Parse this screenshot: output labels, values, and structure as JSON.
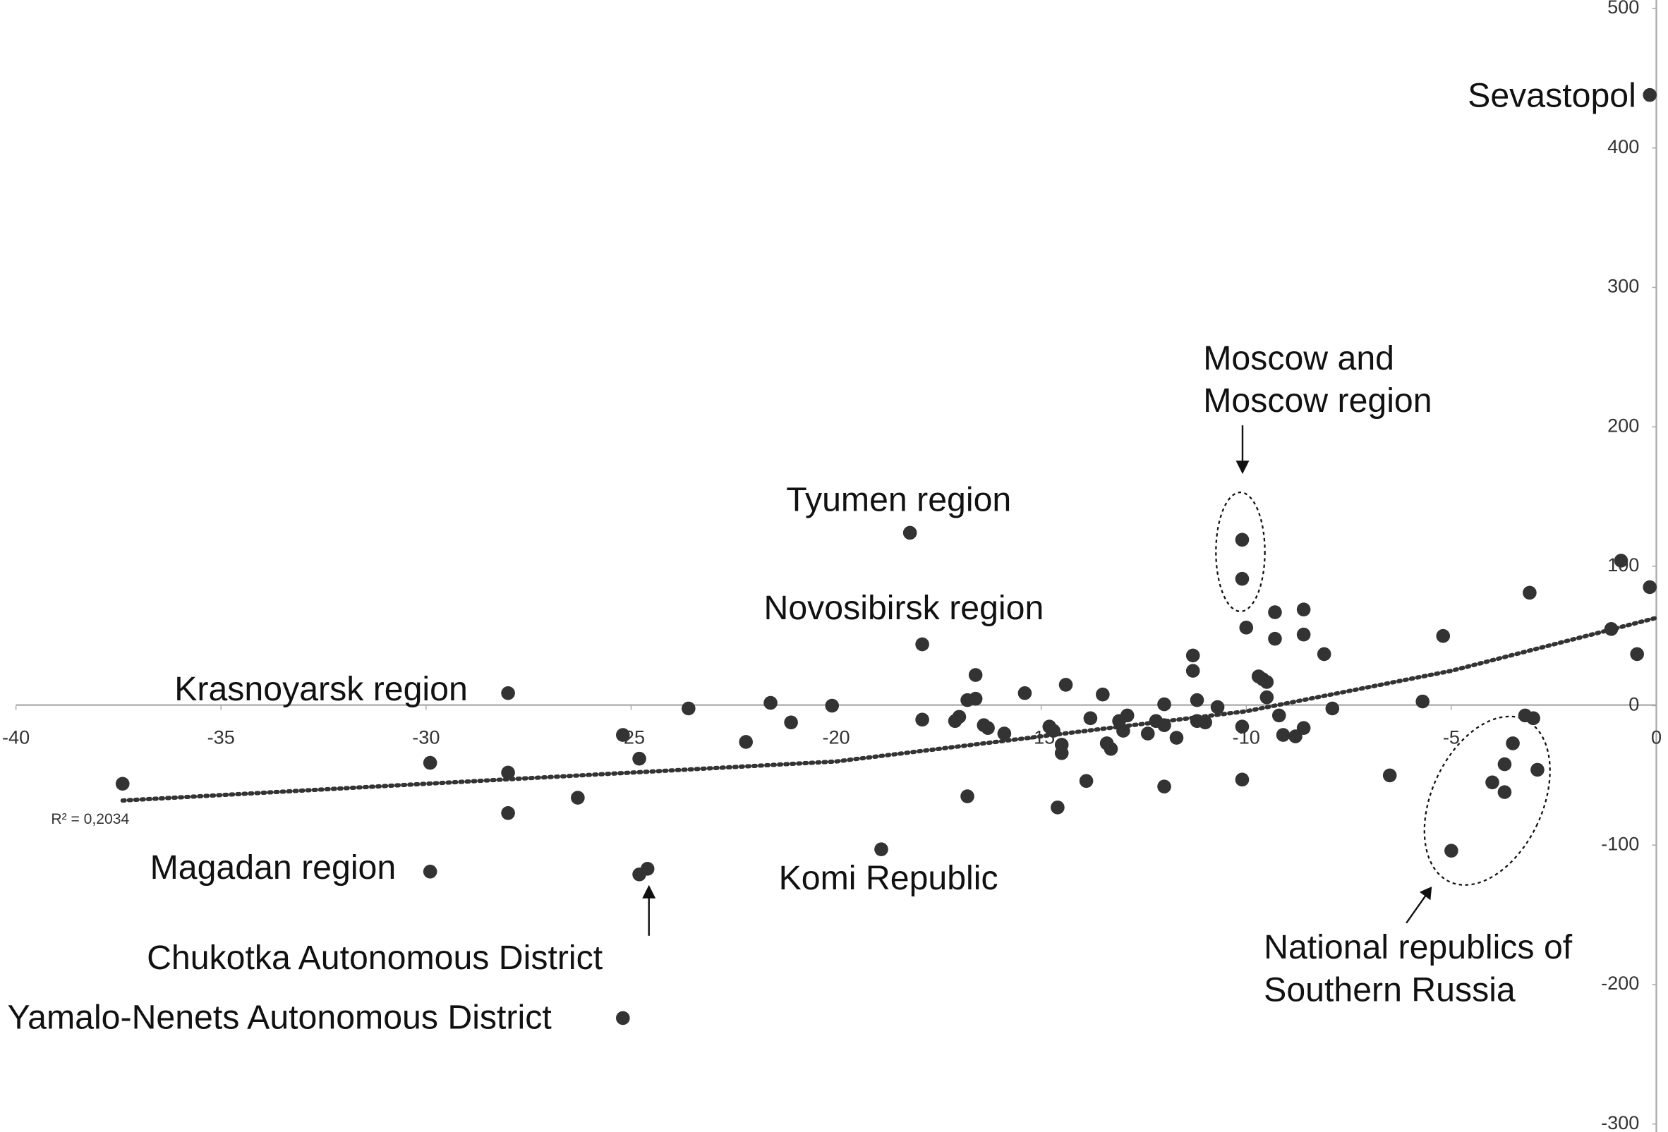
{
  "chart_data": {
    "type": "scatter",
    "x": [
      -0.16,
      -0.86,
      -0.16,
      -1.1,
      -0.47,
      -3.09,
      -3.2,
      -3.0,
      -3.5,
      -3.7,
      -2.9,
      -4.0,
      -3.7,
      -5.0,
      -5.2,
      -5.7,
      -6.5,
      -7.9,
      -8.1,
      -8.6,
      -8.6,
      -8.6,
      -8.8,
      -9.1,
      -9.2,
      -9.3,
      -9.3,
      -9.5,
      -9.5,
      -9.6,
      -9.7,
      -10.0,
      -10.1,
      -10.1,
      -10.1,
      -10.1,
      -10.7,
      -11.0,
      -11.2,
      -11.2,
      -11.3,
      -11.3,
      -11.7,
      -12.0,
      -12.0,
      -12.0,
      -12.2,
      -12.4,
      -12.9,
      -13.0,
      -13.1,
      -13.3,
      -13.4,
      -13.5,
      -13.8,
      -13.9,
      -14.4,
      -14.5,
      -14.5,
      -14.6,
      -14.7,
      -14.8,
      -15.4,
      -15.9,
      -16.3,
      -16.4,
      -16.6,
      -16.6,
      -16.8,
      -17.0,
      -17.1,
      -16.8,
      -17.9,
      -17.9,
      -18.2,
      -18.9,
      -20.1,
      -21.1,
      -21.6,
      -22.2,
      -23.6,
      -24.6,
      -24.8,
      -24.8,
      -25.2,
      -25.2,
      -26.3,
      -28.0,
      -28.0,
      -28.0,
      -29.9,
      -29.9,
      -37.4
    ],
    "y": [
      438,
      104,
      85,
      55,
      37,
      81,
      -7,
      -9,
      -27,
      -42,
      -46,
      -55,
      -62,
      -104,
      50,
      3,
      -50,
      -2,
      37,
      69,
      51,
      -16,
      -22,
      -21,
      -7,
      67,
      48,
      6,
      17,
      19,
      21,
      56,
      119,
      91,
      -15,
      -53,
      -1,
      -12,
      -11,
      4,
      36,
      25,
      -23,
      1,
      -14,
      -58,
      -11,
      -20,
      -7,
      -18,
      -11,
      -31,
      -27,
      8,
      -9,
      -54,
      15,
      -28,
      -34,
      -73,
      -18,
      -15,
      9,
      -20,
      -16,
      -14,
      5,
      22,
      4,
      -8,
      -11,
      -65,
      44,
      -10,
      124,
      -103,
      0,
      -12,
      2,
      -26,
      -2,
      -117,
      -121,
      -38,
      -21,
      -224,
      -66,
      -48,
      -77,
      9,
      -41,
      -119,
      -56
    ],
    "color": "#333333",
    "xlim": [
      -40,
      0
    ],
    "ylim": [
      -300,
      500
    ],
    "xticks": [
      -40,
      -35,
      -30,
      -25,
      -20,
      -15,
      -10,
      -5,
      0
    ],
    "yticks": [
      -300,
      -200,
      -100,
      0,
      100,
      200,
      300,
      400,
      500
    ],
    "trendline": {
      "x": [
        -37.4,
        -30,
        -20,
        -10,
        -5,
        0
      ],
      "y": [
        -68,
        -56,
        -40,
        -4,
        25,
        63
      ],
      "label": "R² = 0,2034"
    },
    "annotations": [
      {
        "lines": [
          "Sevastopol"
        ]
      },
      {
        "lines": [
          "Moscow and",
          "Moscow region"
        ]
      },
      {
        "lines": [
          "Tyumen region"
        ]
      },
      {
        "lines": [
          "Novosibirsk region"
        ]
      },
      {
        "lines": [
          "Krasnoyarsk region"
        ]
      },
      {
        "lines": [
          "Magadan region"
        ]
      },
      {
        "lines": [
          "Komi Republic"
        ]
      },
      {
        "lines": [
          "Chukotka Autonomous District"
        ]
      },
      {
        "lines": [
          "Yamalo-Nenets Autonomous District"
        ]
      },
      {
        "lines": [
          "National republics of",
          "Southern Russia"
        ]
      }
    ]
  }
}
